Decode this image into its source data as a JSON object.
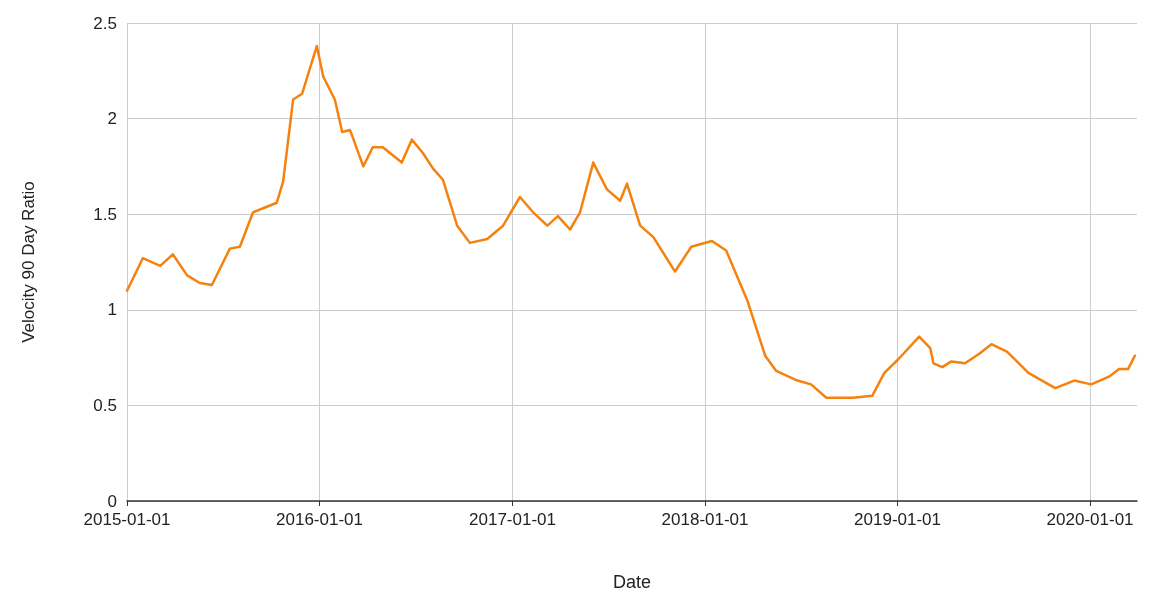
{
  "chart_data": {
    "type": "line",
    "xlabel": "Date",
    "ylabel": "Velocity 90 Day Ratio",
    "x": [
      "2015-01-01",
      "2015-01-31",
      "2015-03-05",
      "2015-03-29",
      "2015-04-25",
      "2015-05-19",
      "2015-06-11",
      "2015-07-15",
      "2015-08-03",
      "2015-08-28",
      "2015-10-12",
      "2015-10-24",
      "2015-11-12",
      "2015-11-29",
      "2015-12-27",
      "2016-01-08",
      "2016-01-30",
      "2016-02-13",
      "2016-02-28",
      "2016-03-24",
      "2016-04-11",
      "2016-04-30",
      "2016-06-05",
      "2016-06-24",
      "2016-07-15",
      "2016-08-03",
      "2016-08-22",
      "2016-09-18",
      "2016-10-12",
      "2016-11-14",
      "2016-12-14",
      "2017-01-15",
      "2017-02-09",
      "2017-03-08",
      "2017-03-28",
      "2017-04-20",
      "2017-05-09",
      "2017-06-03",
      "2017-06-29",
      "2017-07-24",
      "2017-08-06",
      "2017-08-31",
      "2017-09-25",
      "2017-11-05",
      "2017-12-06",
      "2018-01-14",
      "2018-02-10",
      "2018-03-22",
      "2018-04-25",
      "2018-05-16",
      "2018-06-25",
      "2018-07-21",
      "2018-08-19",
      "2018-10-09",
      "2018-11-14",
      "2018-12-07",
      "2019-01-02",
      "2019-02-11",
      "2019-03-04",
      "2019-03-10",
      "2019-03-27",
      "2019-04-13",
      "2019-05-09",
      "2019-06-05",
      "2019-06-28",
      "2019-07-28",
      "2019-09-06",
      "2019-10-27",
      "2019-12-02",
      "2020-01-03",
      "2020-02-06",
      "2020-02-25",
      "2020-03-13",
      "2020-03-26"
    ],
    "series": [
      {
        "color": "#f5820f",
        "values": [
          1.1,
          1.27,
          1.23,
          1.29,
          1.18,
          1.14,
          1.13,
          1.32,
          1.33,
          1.51,
          1.56,
          1.67,
          2.1,
          2.13,
          2.38,
          2.22,
          2.1,
          1.93,
          1.94,
          1.75,
          1.85,
          1.85,
          1.77,
          1.89,
          1.82,
          1.74,
          1.68,
          1.44,
          1.35,
          1.37,
          1.44,
          1.59,
          1.51,
          1.44,
          1.49,
          1.42,
          1.51,
          1.77,
          1.63,
          1.57,
          1.66,
          1.44,
          1.38,
          1.2,
          1.33,
          1.36,
          1.31,
          1.05,
          0.76,
          0.68,
          0.63,
          0.61,
          0.54,
          0.54,
          0.55,
          0.67,
          0.74,
          0.86,
          0.8,
          0.72,
          0.7,
          0.73,
          0.72,
          0.77,
          0.82,
          0.78,
          0.67,
          0.59,
          0.63,
          0.61,
          0.65,
          0.69,
          0.69,
          0.76
        ]
      }
    ],
    "xlim": [
      "2015-01-01",
      "2020-03-30"
    ],
    "xticks": [
      "2015-01-01",
      "2016-01-01",
      "2017-01-01",
      "2018-01-01",
      "2019-01-01",
      "2020-01-01"
    ],
    "ylim": [
      0,
      2.5
    ],
    "yticks": [
      0,
      0.5,
      1,
      1.5,
      2,
      2.5
    ],
    "grid": true,
    "marker": "none",
    "line_style": "solid"
  }
}
